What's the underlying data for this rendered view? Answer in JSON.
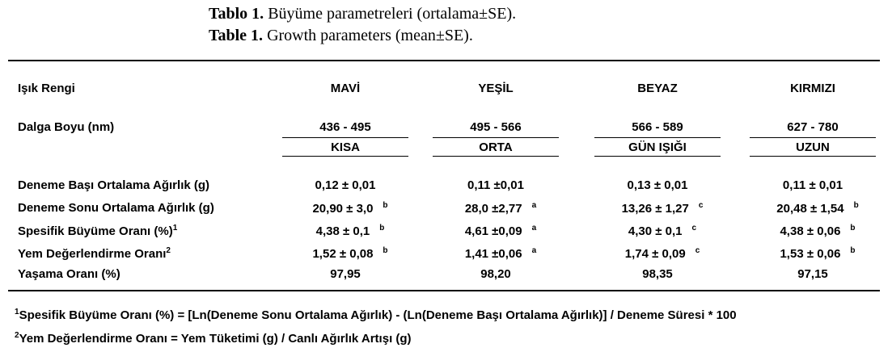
{
  "caption": {
    "tr": {
      "label": "Tablo 1.",
      "text": "Büyüme parametreleri (ortalama±SE)."
    },
    "en": {
      "label": "Table 1.",
      "text": "Growth parameters (mean±SE)."
    }
  },
  "table": {
    "header": [
      "Işık Rengi",
      "MAVİ",
      "YEŞİL",
      "BEYAZ",
      "KIRMIZI"
    ],
    "wavelength": {
      "label": "Dalga Boyu (nm)",
      "ranges": [
        "436 - 495",
        "495 - 566",
        "566 - 589",
        "627 - 780"
      ],
      "bands": [
        "KISA",
        "ORTA",
        "GÜN IŞIĞI",
        "UZUN"
      ]
    },
    "rows": [
      {
        "label": "Deneme Başı Ortalama Ağırlık (g)",
        "cells": [
          {
            "value": "0,12 ± 0,01"
          },
          {
            "value": "0,11 ±0,01"
          },
          {
            "value": "0,13 ± 0,01"
          },
          {
            "value": "0,11 ± 0,01"
          }
        ]
      },
      {
        "label": "Deneme Sonu Ortalama Ağırlık (g)",
        "cells": [
          {
            "value": "20,90 ± 3,0",
            "sig": "b"
          },
          {
            "value": "28,0 ±2,77",
            "sig": "a"
          },
          {
            "value": "13,26 ± 1,27",
            "sig": "c"
          },
          {
            "value": "20,48 ± 1,54",
            "sig": "b"
          }
        ]
      },
      {
        "label": "Spesifik Büyüme Oranı (%)",
        "note": "1",
        "cells": [
          {
            "value": "4,38 ± 0,1",
            "sig": "b"
          },
          {
            "value": "4,61 ±0,09",
            "sig": "a"
          },
          {
            "value": "4,30 ± 0,1",
            "sig": "c"
          },
          {
            "value": "4,38 ±  0,06",
            "sig": "b"
          }
        ]
      },
      {
        "label": "Yem Değerlendirme Oranı",
        "note": "2",
        "cells": [
          {
            "value": "1,52 ± 0,08",
            "sig": "b"
          },
          {
            "value": "1,41 ±0,06",
            "sig": "a"
          },
          {
            "value": "1,74 ± 0,09",
            "sig": "c"
          },
          {
            "value": "1,53 ± 0,06",
            "sig": "b"
          }
        ]
      },
      {
        "label": "Yaşama Oranı (%)",
        "cells": [
          {
            "value": "97,95"
          },
          {
            "value": "98,20"
          },
          {
            "value": "98,35"
          },
          {
            "value": "97,15"
          }
        ]
      }
    ]
  },
  "footnotes": [
    {
      "mark": "1",
      "text": "Spesifik Büyüme Oranı (%) = [Ln(Deneme Sonu Ortalama Ağırlık) - (Ln(Deneme Başı Ortalama Ağırlık)] / Deneme Süresi * 100"
    },
    {
      "mark": "2",
      "text": "Yem Değerlendirme Oranı = Yem Tüketimi (g) / Canlı Ağırlık Artışı (g)"
    }
  ]
}
